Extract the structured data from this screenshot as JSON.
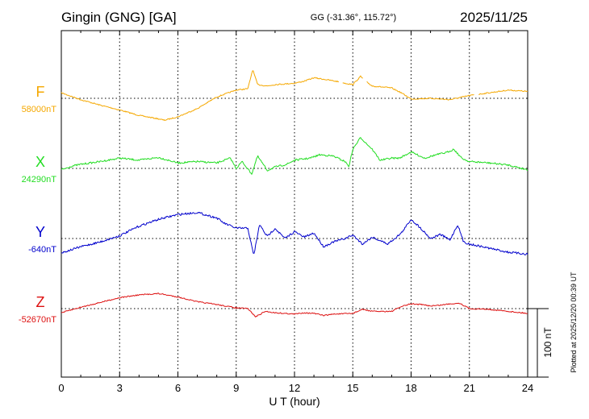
{
  "header": {
    "station": "Gingin (GNG)  [GA]",
    "coords": "GG (-31.36°, 115.72°)",
    "date": "2025/11/25"
  },
  "plotted_note": "Plotted at 2025/12/20 00:39 UT",
  "chart_data": {
    "type": "line",
    "xlabel": "U T (hour)",
    "xlim": [
      0,
      24
    ],
    "xticks": [
      "0",
      "3",
      "6",
      "9",
      "12",
      "15",
      "18",
      "21",
      "24"
    ],
    "scale_bar_label": "100 nT",
    "scale_bar_nT": 100,
    "series": [
      {
        "name": "F",
        "baseline_label": "58000nT",
        "baseline_nT": 58000,
        "color": "#f5a800",
        "x": [
          0,
          1,
          2,
          3,
          4,
          5,
          5.3,
          6,
          7,
          8,
          9,
          9.6,
          9.85,
          10.1,
          10.6,
          11,
          12,
          12.5,
          13,
          13.7,
          14.3,
          14.6,
          15,
          15.4,
          15.7,
          16,
          17,
          17.5,
          18,
          19,
          20,
          21,
          22,
          23,
          24
        ],
        "y": [
          58008,
          57998,
          57990,
          57983,
          57975,
          57970,
          57968,
          57973,
          57985,
          58002,
          58012,
          58014,
          58042,
          58020,
          58018,
          58020,
          58022,
          58025,
          58030,
          58027,
          58024,
          58022,
          58020,
          58032,
          58024,
          58018,
          58015,
          58008,
          57999,
          58000,
          57998,
          58004,
          58008,
          58012,
          58010
        ]
      },
      {
        "name": "X",
        "baseline_label": "24290nT",
        "baseline_nT": 24290,
        "color": "#22dd22",
        "x": [
          0,
          0.5,
          1,
          2,
          3,
          4,
          5,
          6,
          7,
          8,
          8.7,
          9,
          9.3,
          9.8,
          10.1,
          10.6,
          11,
          11.6,
          12,
          12.8,
          13.3,
          14,
          14.6,
          14.8,
          15,
          15.4,
          16,
          16.4,
          17,
          17.4,
          18,
          18.7,
          19.3,
          19.8,
          20.2,
          20.6,
          21,
          22,
          23,
          24
        ],
        "y": [
          24288,
          24293,
          24296,
          24300,
          24305,
          24302,
          24306,
          24298,
          24300,
          24298,
          24305,
          24290,
          24300,
          24282,
          24308,
          24287,
          24292,
          24296,
          24302,
          24305,
          24310,
          24308,
          24300,
          24293,
          24318,
          24335,
          24318,
          24302,
          24305,
          24305,
          24314,
          24305,
          24310,
          24313,
          24318,
          24305,
          24300,
          24298,
          24295,
          24288
        ]
      },
      {
        "name": "Y",
        "baseline_label": "-640nT",
        "baseline_nT": -640,
        "color": "#0000cc",
        "x": [
          0,
          1,
          2,
          3,
          4,
          5,
          6,
          7,
          8,
          8.4,
          9,
          9.6,
          9.9,
          10.2,
          10.6,
          11,
          11.5,
          12,
          12.5,
          13,
          13.5,
          14,
          14.6,
          15,
          15.5,
          16,
          16.8,
          17.5,
          18,
          18.5,
          19,
          19.5,
          20,
          20.4,
          20.7,
          21,
          22,
          23,
          24
        ],
        "y": [
          -661,
          -652,
          -645,
          -636,
          -622,
          -612,
          -605,
          -602,
          -610,
          -618,
          -625,
          -625,
          -665,
          -620,
          -637,
          -625,
          -640,
          -630,
          -638,
          -632,
          -652,
          -645,
          -640,
          -635,
          -648,
          -638,
          -648,
          -632,
          -612,
          -625,
          -640,
          -634,
          -642,
          -620,
          -645,
          -648,
          -654,
          -660,
          -663
        ]
      },
      {
        "name": "Z",
        "baseline_label": "-52670nT",
        "baseline_nT": -52670,
        "color": "#dd1111",
        "x": [
          0,
          1,
          2,
          3,
          4,
          5,
          6,
          7,
          8,
          9,
          9.6,
          10,
          10.5,
          11,
          12,
          12.5,
          13,
          13.5,
          14,
          15,
          15.5,
          16,
          17,
          17.5,
          18,
          18.5,
          19,
          19.5,
          20,
          20.5,
          21,
          22,
          23,
          24
        ],
        "y": [
          -52676,
          -52668,
          -52661,
          -52654,
          -52650,
          -52648,
          -52653,
          -52660,
          -52664,
          -52669,
          -52670,
          -52682,
          -52674,
          -52676,
          -52678,
          -52676,
          -52677,
          -52680,
          -52678,
          -52677,
          -52671,
          -52674,
          -52674,
          -52667,
          -52663,
          -52664,
          -52666,
          -52665,
          -52663,
          -52662,
          -52670,
          -52671,
          -52674,
          -52677
        ]
      }
    ]
  }
}
